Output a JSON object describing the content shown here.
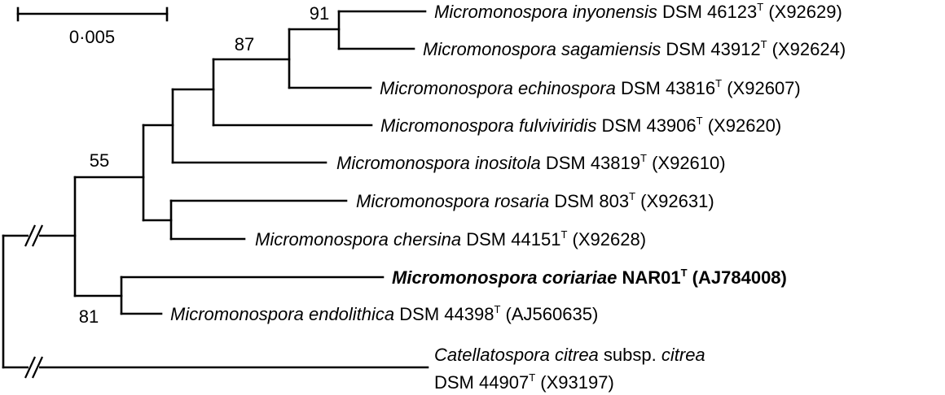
{
  "scale_bar": {
    "label": "0·005"
  },
  "bootstrap": {
    "b91": "91",
    "b87": "87",
    "b55": "55",
    "b81": "81"
  },
  "taxa": {
    "inyonensis": {
      "genus": "Micromonospora",
      "species": "inyonensis",
      "strain": "DSM 46123",
      "type_mark": "T",
      "accession": "(X92629)"
    },
    "sagamiensis": {
      "genus": "Micromonospora",
      "species": "sagamiensis",
      "strain": "DSM 43912",
      "type_mark": "T",
      "accession": "(X92624)"
    },
    "echinospora": {
      "genus": "Micromonospora",
      "species": "echinospora",
      "strain": "DSM 43816",
      "type_mark": "T",
      "accession": "(X92607)"
    },
    "fulviviridis": {
      "genus": "Micromonospora",
      "species": "fulviviridis",
      "strain": "DSM 43906",
      "type_mark": "T",
      "accession": "(X92620)"
    },
    "inositola": {
      "genus": "Micromonospora",
      "species": "inositola",
      "strain": "DSM 43819",
      "type_mark": "T",
      "accession": "(X92610)"
    },
    "rosaria": {
      "genus": "Micromonospora",
      "species": "rosaria",
      "strain": "DSM 803",
      "type_mark": "T",
      "accession": "(X92631)"
    },
    "chersina": {
      "genus": "Micromonospora",
      "species": "chersina",
      "strain": "DSM 44151",
      "type_mark": "T",
      "accession": "(X92628)"
    },
    "coriariae": {
      "genus": "Micromonospora",
      "species": "coriariae",
      "strain": "NAR01",
      "type_mark": "T",
      "accession": "(AJ784008)"
    },
    "endolithica": {
      "genus": "Micromonospora",
      "species": "endolithica",
      "strain": "DSM 44398",
      "type_mark": "T",
      "accession": "(AJ560635)"
    },
    "catellatospora": {
      "line1_genus": "Catellatospora",
      "line1_species": "citrea",
      "line1_subsp": "subsp.",
      "line1_subsp_name": "citrea",
      "strain": "DSM 44907",
      "type_mark": "T",
      "accession": "(X93197)"
    }
  }
}
